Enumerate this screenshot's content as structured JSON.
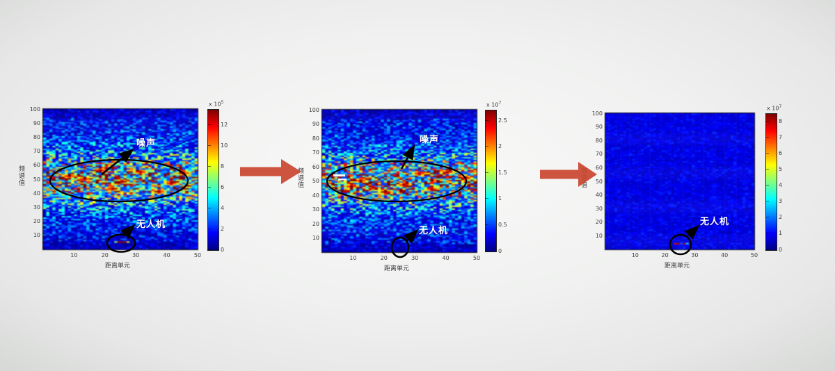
{
  "page": {
    "background_color": "#f0f1f0",
    "colormap": "jet",
    "flow_arrow_color": "#c9452f",
    "annotation_stroke_color": "#000000",
    "annotation_text_color": "#ffffff"
  },
  "flow": {
    "arrow_count": 2
  },
  "chart_data": [
    {
      "type": "heatmap",
      "panel": 1,
      "xlabel": "距离单元",
      "ylabel": "频谱值",
      "xlim": [
        0,
        50
      ],
      "ylim": [
        0,
        100
      ],
      "x_ticks": [
        10,
        20,
        30,
        40,
        50
      ],
      "y_ticks": [
        100,
        90,
        80,
        70,
        60,
        50,
        40,
        30,
        20,
        10
      ],
      "colormap": "jet",
      "colorbar": {
        "scale": {
          "base": "x 10",
          "exp": "5"
        },
        "ticks": [
          12,
          10,
          8,
          6,
          4,
          2,
          0
        ],
        "range": [
          0,
          13.5
        ]
      },
      "annotations": {
        "noise": "噪声",
        "uav": "无人机"
      },
      "features": {
        "noise_band_y": [
          38,
          62
        ],
        "hotspots": [
          [
            13,
            50
          ],
          [
            25,
            48
          ],
          [
            31,
            55
          ],
          [
            45,
            54
          ],
          [
            22,
            43
          ],
          [
            37,
            41
          ],
          [
            8,
            52
          ],
          [
            41,
            47
          ],
          [
            18,
            56
          ]
        ],
        "uav_cell": [
          25,
          5
        ],
        "uav_visible": true
      }
    },
    {
      "type": "heatmap",
      "panel": 2,
      "xlabel": "距离单元",
      "ylabel": "频谱值",
      "xlim": [
        0,
        50
      ],
      "ylim": [
        0,
        100
      ],
      "x_ticks": [
        10,
        20,
        30,
        40,
        50
      ],
      "y_ticks": [
        100,
        90,
        80,
        70,
        60,
        50,
        40,
        30,
        20,
        10
      ],
      "colormap": "jet",
      "colorbar": {
        "scale": {
          "base": "x 10",
          "exp": "7"
        },
        "ticks": [
          2.5,
          2,
          1.5,
          1,
          0.5,
          0
        ],
        "range": [
          0,
          2.7
        ]
      },
      "annotations": {
        "noise": "噪声",
        "uav": "无人机"
      },
      "features": {
        "noise_band_y": [
          38,
          62
        ],
        "hotspots": [
          [
            26,
            47
          ],
          [
            12,
            50
          ],
          [
            31,
            55
          ],
          [
            40,
            56
          ],
          [
            20,
            42
          ],
          [
            46,
            52
          ],
          [
            35,
            44
          ],
          [
            9,
            46
          ]
        ],
        "uav_cell": [
          25,
          3
        ],
        "uav_visible": false,
        "white_dash_markers": 2
      }
    },
    {
      "type": "heatmap",
      "panel": 3,
      "xlabel": "距离单元",
      "ylabel": "频谱值",
      "xlim": [
        0,
        50
      ],
      "ylim": [
        0,
        100
      ],
      "x_ticks": [
        10,
        20,
        30,
        40,
        50
      ],
      "y_ticks": [
        100,
        90,
        80,
        70,
        60,
        50,
        40,
        30,
        20,
        10
      ],
      "colormap": "jet",
      "colorbar": {
        "scale": {
          "base": "x 10",
          "exp": "7"
        },
        "ticks": [
          8,
          7,
          6,
          5,
          4,
          3,
          2,
          1,
          0
        ],
        "range": [
          0,
          8.5
        ]
      },
      "annotations": {
        "uav": "无人机"
      },
      "features": {
        "uniform_background": true,
        "hotspots": [],
        "uav_cell": [
          25,
          4
        ],
        "uav_visible": true
      }
    }
  ]
}
